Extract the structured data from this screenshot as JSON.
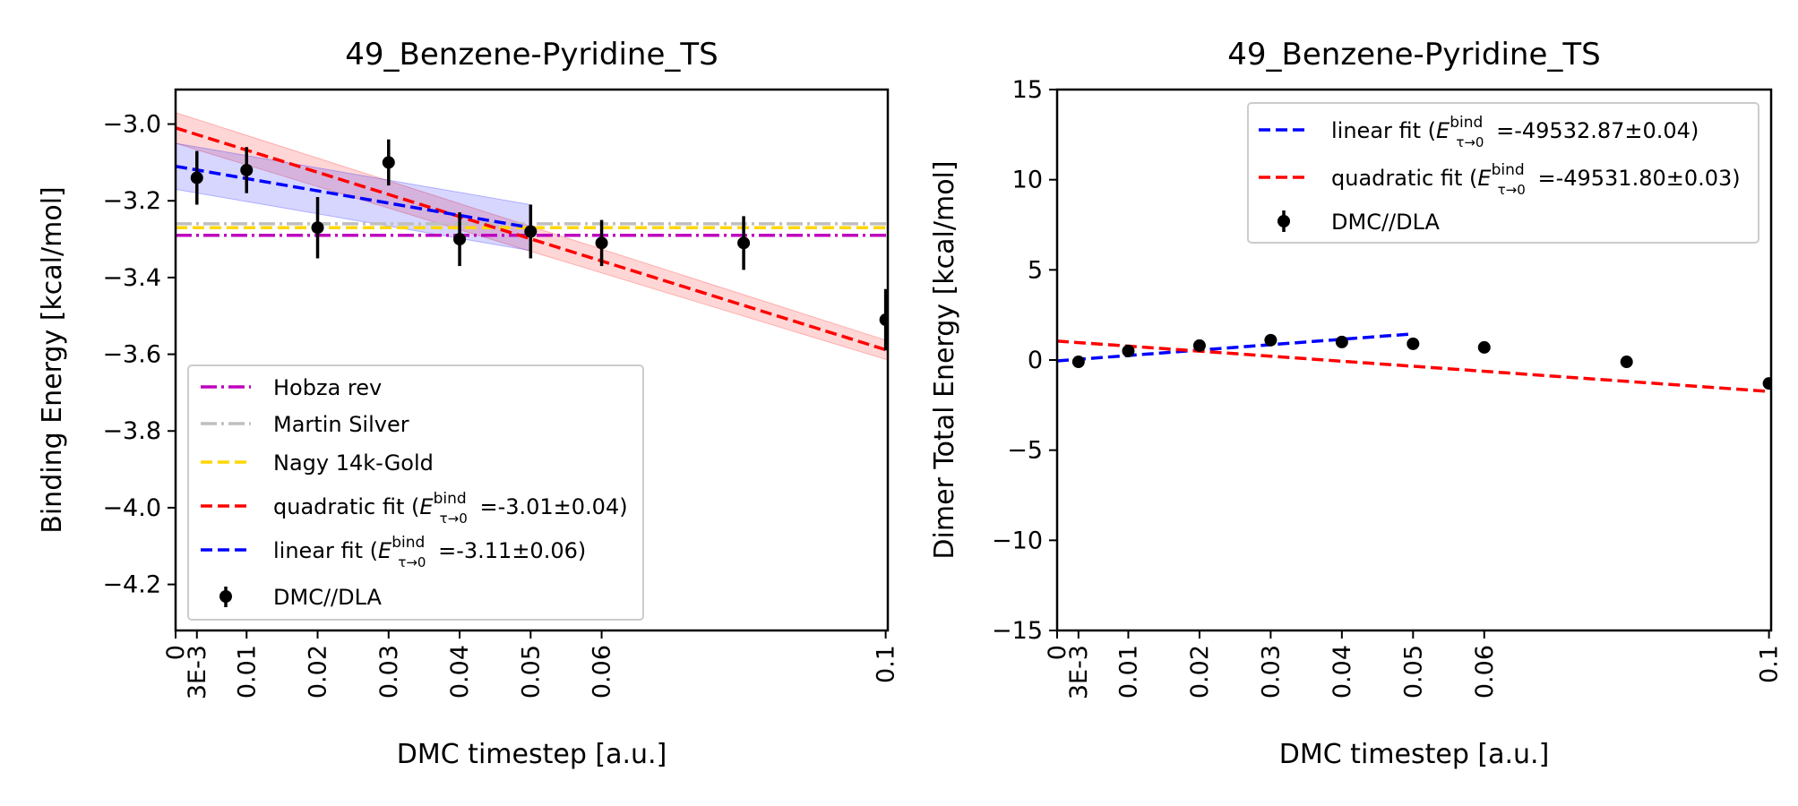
{
  "chart_data": [
    {
      "type": "line",
      "title": "49_Benzene-Pyridine_TS",
      "xlabel": "DMC timestep [a.u.]",
      "ylabel": "Binding Energy [kcal/mol]",
      "xlim": [
        0,
        0.1003
      ],
      "ylim": [
        -4.32,
        -2.91
      ],
      "xticks": [
        0,
        0.003,
        0.01,
        0.02,
        0.03,
        0.04,
        0.05,
        0.06,
        0.1
      ],
      "xtick_labels": [
        "0",
        "3E-3",
        "0.01",
        "0.02",
        "0.03",
        "0.04",
        "0.05",
        "0.06",
        "0.1"
      ],
      "yticks": [
        -3.0,
        -3.2,
        -3.4,
        -3.6,
        -3.8,
        -4.0,
        -4.2
      ],
      "ytick_labels": [
        "−3.0",
        "−3.2",
        "−3.4",
        "−3.6",
        "−3.8",
        "−4.0",
        "−4.2"
      ],
      "legend_position": "lower-left",
      "reference_lines": [
        {
          "name": "Hobza rev",
          "y": -3.29,
          "color": "#bf00bf",
          "style": "dashdot"
        },
        {
          "name": "Martin Silver",
          "y": -3.26,
          "color": "#bfbfbf",
          "style": "dashdot"
        },
        {
          "name": "Nagy 14k-Gold",
          "y": -3.27,
          "color": "#ffd700",
          "style": "dashed"
        }
      ],
      "fits": [
        {
          "name": "quadratic fit",
          "legend_value": "=-3.01±0.04",
          "color": "#ff0000",
          "x": [
            0,
            0.1003
          ],
          "y": [
            -3.01,
            -3.59
          ],
          "band_halfwidth": [
            0.04,
            0.025
          ]
        },
        {
          "name": "linear fit",
          "legend_value": "=-3.11±0.06",
          "color": "#0000ff",
          "x": [
            0,
            0.05
          ],
          "y": [
            -3.11,
            -3.27
          ],
          "band_halfwidth": [
            0.06,
            0.06
          ]
        }
      ],
      "series": [
        {
          "name": "DMC//DLA",
          "x": [
            0.003,
            0.01,
            0.02,
            0.03,
            0.04,
            0.05,
            0.06,
            0.08,
            0.1
          ],
          "y": [
            -3.14,
            -3.12,
            -3.27,
            -3.1,
            -3.3,
            -3.28,
            -3.31,
            -3.31,
            -3.51
          ],
          "err": [
            0.07,
            0.06,
            0.08,
            0.06,
            0.07,
            0.07,
            0.06,
            0.07,
            0.08
          ]
        }
      ],
      "legend": [
        "Hobza rev",
        "Martin Silver",
        "Nagy 14k-Gold",
        "quadratic fit",
        "linear fit",
        "DMC//DLA"
      ]
    },
    {
      "type": "line",
      "title": "49_Benzene-Pyridine_TS",
      "xlabel": "DMC timestep [a.u.]",
      "ylabel": "Dimer Total Energy [kcal/mol]",
      "xlim": [
        0,
        0.1003
      ],
      "ylim": [
        -15,
        15
      ],
      "xticks": [
        0,
        0.003,
        0.01,
        0.02,
        0.03,
        0.04,
        0.05,
        0.06,
        0.1
      ],
      "xtick_labels": [
        "0",
        "3E-3",
        "0.01",
        "0.02",
        "0.03",
        "0.04",
        "0.05",
        "0.06",
        "0.1"
      ],
      "yticks": [
        15,
        10,
        5,
        0,
        -5,
        -10,
        -15
      ],
      "ytick_labels": [
        "15",
        "10",
        "5",
        "0",
        "−5",
        "−10",
        "−15"
      ],
      "legend_position": "upper-right",
      "fits": [
        {
          "name": "linear fit",
          "legend_value": "=-49532.87±0.04",
          "color": "#0000ff",
          "x": [
            0,
            0.05
          ],
          "y": [
            -0.05,
            1.45
          ]
        },
        {
          "name": "quadratic fit",
          "legend_value": "=-49531.80±0.03",
          "color": "#ff0000",
          "x": [
            0,
            0.1003
          ],
          "y": [
            1.05,
            -1.75
          ]
        }
      ],
      "series": [
        {
          "name": "DMC//DLA",
          "x": [
            0.003,
            0.01,
            0.02,
            0.03,
            0.04,
            0.05,
            0.06,
            0.08,
            0.1
          ],
          "y": [
            -0.1,
            0.5,
            0.8,
            1.1,
            1.0,
            0.9,
            0.7,
            -0.1,
            -1.3
          ],
          "err": [
            0.05,
            0.05,
            0.05,
            0.05,
            0.05,
            0.05,
            0.05,
            0.05,
            0.05
          ]
        }
      ],
      "legend": [
        "linear fit",
        "quadratic fit",
        "DMC//DLA"
      ]
    }
  ],
  "legend_symbol": {
    "E": "E",
    "sup": "bind",
    "sub": "τ→0"
  }
}
